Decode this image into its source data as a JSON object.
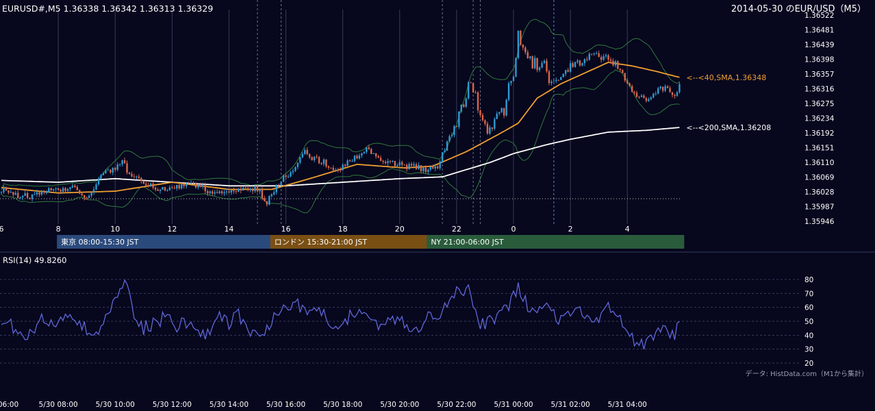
{
  "header": {
    "ohlc_text": "EURUSD#,M5 1.36338 1.36342 1.36313 1.36329",
    "title": "2014-05-30 のEUR/USD（M5）"
  },
  "colors": {
    "background": "#07071e",
    "text": "#ffffff",
    "grid": "#363d5a",
    "bull": "#2f9ad2",
    "bear": "#d8684b",
    "band": "#2f7a3a",
    "sma40": "#f0a030",
    "sma200": "#ffffff",
    "rsi": "#6067d8"
  },
  "price_axis": {
    "min": 1.35946,
    "max": 1.36522,
    "ticks": [
      "1.36522",
      "1.36481",
      "1.36439",
      "1.36398",
      "1.36357",
      "1.36316",
      "1.36275",
      "1.36234",
      "1.36192",
      "1.36151",
      "1.36110",
      "1.36069",
      "1.36028",
      "1.35987",
      "1.35946"
    ]
  },
  "hour_axis": {
    "ticks": [
      {
        "label": "6",
        "t": 0
      },
      {
        "label": "8",
        "t": 24
      },
      {
        "label": "10",
        "t": 48
      },
      {
        "label": "12",
        "t": 72
      },
      {
        "label": "14",
        "t": 96
      },
      {
        "label": "16",
        "t": 120
      },
      {
        "label": "18",
        "t": 144
      },
      {
        "label": "20",
        "t": 168
      },
      {
        "label": "22",
        "t": 192
      },
      {
        "label": "0",
        "t": 216
      },
      {
        "label": "2",
        "t": 240
      },
      {
        "label": "4",
        "t": 264
      }
    ],
    "solid_lines": [
      24,
      48,
      72,
      96,
      120,
      144,
      168,
      192,
      216,
      240,
      264
    ],
    "dashed_lines": [
      108,
      118,
      186,
      199,
      202,
      233
    ],
    "last_bar": 286
  },
  "sessions": [
    {
      "label": "東京 08:00-15:30 JST",
      "t_start": 24,
      "t_end": 114,
      "color": "#2b4a7c"
    },
    {
      "label": "ロンドン 15:30-21:00 JST",
      "t_start": 114,
      "t_end": 180,
      "color": "#7a4f14"
    },
    {
      "label": "NY 21:00-06:00 JST",
      "t_start": 180,
      "t_end": 288,
      "color": "#2a5c3c"
    }
  ],
  "annotations": {
    "sma40": "<--<40,SMA,1.36348",
    "sma200": "<--<200,SMA,1.36208",
    "dotted_level": 1.36009
  },
  "rsi": {
    "label": "RSI(14) 49.8260",
    "min": 20,
    "max": 80,
    "ticks": [
      "80",
      "70",
      "60",
      "50",
      "40",
      "30",
      "20"
    ],
    "levels": [
      80,
      70,
      60,
      50,
      40,
      30,
      20
    ]
  },
  "bottom_axis": {
    "ticks": [
      {
        "label": "06:00",
        "t": 0
      },
      {
        "label": "5/30 08:00",
        "t": 24
      },
      {
        "label": "5/30 10:00",
        "t": 48
      },
      {
        "label": "5/30 12:00",
        "t": 72
      },
      {
        "label": "5/30 14:00",
        "t": 96
      },
      {
        "label": "5/30 16:00",
        "t": 120
      },
      {
        "label": "5/30 18:00",
        "t": 144
      },
      {
        "label": "5/30 20:00",
        "t": 168
      },
      {
        "label": "5/30 22:00",
        "t": 192
      },
      {
        "label": "5/31 00:00",
        "t": 216
      },
      {
        "label": "5/31 02:00",
        "t": 240
      },
      {
        "label": "5/31 04:00",
        "t": 264
      }
    ]
  },
  "footer": {
    "source": "データ: HistData.com（M1から集計）"
  },
  "chart_data": {
    "type": "candlestick",
    "symbol": "EURUSD#",
    "timeframe": "M5",
    "ylim": [
      1.35946,
      1.36522
    ],
    "price_keypoints": [
      [
        0,
        1.36035
      ],
      [
        6,
        1.3602
      ],
      [
        12,
        1.36015
      ],
      [
        18,
        1.3603
      ],
      [
        24,
        1.36032
      ],
      [
        30,
        1.3604
      ],
      [
        36,
        1.36005
      ],
      [
        40,
        1.36055
      ],
      [
        44,
        1.3608
      ],
      [
        48,
        1.36095
      ],
      [
        51,
        1.3611
      ],
      [
        54,
        1.3608
      ],
      [
        60,
        1.3605
      ],
      [
        66,
        1.36035
      ],
      [
        72,
        1.3604
      ],
      [
        78,
        1.3605
      ],
      [
        84,
        1.36045
      ],
      [
        90,
        1.3602
      ],
      [
        96,
        1.3603
      ],
      [
        102,
        1.3604
      ],
      [
        108,
        1.36035
      ],
      [
        112,
        1.36
      ],
      [
        114,
        1.3602
      ],
      [
        118,
        1.3606
      ],
      [
        124,
        1.361
      ],
      [
        128,
        1.3614
      ],
      [
        132,
        1.3612
      ],
      [
        136,
        1.3611
      ],
      [
        142,
        1.3609
      ],
      [
        146,
        1.3611
      ],
      [
        150,
        1.3613
      ],
      [
        154,
        1.36145
      ],
      [
        160,
        1.3612
      ],
      [
        164,
        1.3611
      ],
      [
        170,
        1.361
      ],
      [
        176,
        1.36095
      ],
      [
        180,
        1.3609
      ],
      [
        184,
        1.36095
      ],
      [
        186,
        1.3613
      ],
      [
        188,
        1.3617
      ],
      [
        192,
        1.3622
      ],
      [
        195,
        1.3627
      ],
      [
        198,
        1.3634
      ],
      [
        200,
        1.363
      ],
      [
        204,
        1.362
      ],
      [
        208,
        1.3623
      ],
      [
        212,
        1.3626
      ],
      [
        216,
        1.3636
      ],
      [
        218,
        1.3646
      ],
      [
        220,
        1.3642
      ],
      [
        224,
        1.3638
      ],
      [
        228,
        1.3639
      ],
      [
        232,
        1.3633
      ],
      [
        236,
        1.3635
      ],
      [
        240,
        1.3638
      ],
      [
        244,
        1.3639
      ],
      [
        248,
        1.3641
      ],
      [
        252,
        1.36405
      ],
      [
        256,
        1.364
      ],
      [
        260,
        1.3638
      ],
      [
        264,
        1.3633
      ],
      [
        268,
        1.363
      ],
      [
        272,
        1.3629
      ],
      [
        276,
        1.3631
      ],
      [
        280,
        1.3632
      ],
      [
        284,
        1.363
      ],
      [
        286,
        1.36329
      ]
    ],
    "sma40_keypoints": [
      [
        0,
        1.3604
      ],
      [
        24,
        1.36025
      ],
      [
        48,
        1.3603
      ],
      [
        72,
        1.36055
      ],
      [
        96,
        1.36035
      ],
      [
        114,
        1.36035
      ],
      [
        130,
        1.36065
      ],
      [
        150,
        1.36105
      ],
      [
        170,
        1.36095
      ],
      [
        182,
        1.361
      ],
      [
        196,
        1.3614
      ],
      [
        210,
        1.3619
      ],
      [
        218,
        1.3622
      ],
      [
        226,
        1.3629
      ],
      [
        236,
        1.3633
      ],
      [
        246,
        1.3636
      ],
      [
        256,
        1.3639
      ],
      [
        266,
        1.3638
      ],
      [
        276,
        1.36365
      ],
      [
        286,
        1.36348
      ]
    ],
    "sma200_keypoints": [
      [
        0,
        1.3606
      ],
      [
        24,
        1.36055
      ],
      [
        48,
        1.36065
      ],
      [
        72,
        1.36055
      ],
      [
        96,
        1.36045
      ],
      [
        120,
        1.36045
      ],
      [
        144,
        1.36055
      ],
      [
        168,
        1.36065
      ],
      [
        186,
        1.3607
      ],
      [
        196,
        1.3609
      ],
      [
        206,
        1.3611
      ],
      [
        216,
        1.36135
      ],
      [
        230,
        1.3616
      ],
      [
        240,
        1.36175
      ],
      [
        256,
        1.36195
      ],
      [
        272,
        1.362
      ],
      [
        286,
        1.36208
      ]
    ],
    "rsi_keypoints": [
      [
        0,
        50
      ],
      [
        6,
        45
      ],
      [
        12,
        40
      ],
      [
        16,
        52
      ],
      [
        20,
        46
      ],
      [
        24,
        50
      ],
      [
        28,
        55
      ],
      [
        34,
        48
      ],
      [
        38,
        40
      ],
      [
        42,
        44
      ],
      [
        46,
        58
      ],
      [
        50,
        75
      ],
      [
        52,
        79
      ],
      [
        56,
        55
      ],
      [
        60,
        45
      ],
      [
        66,
        50
      ],
      [
        70,
        54
      ],
      [
        74,
        46
      ],
      [
        78,
        50
      ],
      [
        84,
        44
      ],
      [
        88,
        40
      ],
      [
        92,
        52
      ],
      [
        96,
        48
      ],
      [
        100,
        56
      ],
      [
        104,
        44
      ],
      [
        108,
        40
      ],
      [
        112,
        45
      ],
      [
        116,
        55
      ],
      [
        120,
        60
      ],
      [
        124,
        64
      ],
      [
        128,
        55
      ],
      [
        132,
        60
      ],
      [
        136,
        55
      ],
      [
        140,
        45
      ],
      [
        144,
        50
      ],
      [
        148,
        55
      ],
      [
        152,
        60
      ],
      [
        156,
        48
      ],
      [
        160,
        46
      ],
      [
        164,
        52
      ],
      [
        168,
        50
      ],
      [
        172,
        47
      ],
      [
        176,
        46
      ],
      [
        180,
        54
      ],
      [
        184,
        50
      ],
      [
        188,
        62
      ],
      [
        192,
        70
      ],
      [
        196,
        74
      ],
      [
        198,
        70
      ],
      [
        200,
        60
      ],
      [
        202,
        48
      ],
      [
        206,
        50
      ],
      [
        210,
        55
      ],
      [
        214,
        60
      ],
      [
        216,
        70
      ],
      [
        218,
        75
      ],
      [
        220,
        66
      ],
      [
        224,
        58
      ],
      [
        228,
        63
      ],
      [
        232,
        56
      ],
      [
        236,
        50
      ],
      [
        240,
        54
      ],
      [
        244,
        58
      ],
      [
        248,
        55
      ],
      [
        252,
        52
      ],
      [
        256,
        60
      ],
      [
        260,
        56
      ],
      [
        264,
        40
      ],
      [
        268,
        36
      ],
      [
        272,
        34
      ],
      [
        276,
        40
      ],
      [
        280,
        48
      ],
      [
        284,
        38
      ],
      [
        286,
        50
      ]
    ],
    "rsi_final": 49.826,
    "bands": "bollinger 20/2",
    "sma_periods": [
      40,
      200
    ],
    "grid": true
  }
}
